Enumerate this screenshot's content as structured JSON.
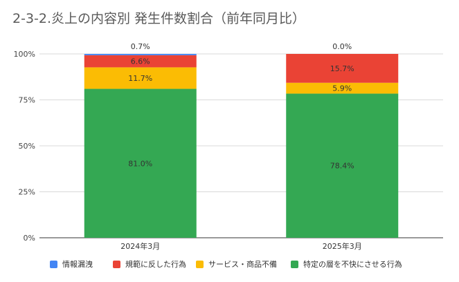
{
  "chart_data": {
    "type": "bar",
    "stacked": true,
    "normalized": true,
    "title": "2-3-2.炎上の内容別 発生件数割合（前年同月比）",
    "xlabel": "",
    "ylabel": "",
    "categories": [
      "2024年3月",
      "2025年3月"
    ],
    "ylim": [
      0,
      100
    ],
    "yticks": [
      "0%",
      "25%",
      "50%",
      "75%",
      "100%"
    ],
    "grid": true,
    "legend_position": "bottom",
    "series": [
      {
        "name": "特定の層を不快にさせる行為",
        "color": "#34a853",
        "values": [
          81.0,
          78.4
        ],
        "labels": [
          "81.0%",
          "78.4%"
        ]
      },
      {
        "name": "サービス・商品不備",
        "color": "#fbbc04",
        "values": [
          11.7,
          5.9
        ],
        "labels": [
          "11.7%",
          "5.9%"
        ]
      },
      {
        "name": "規範に反した行為",
        "color": "#ea4335",
        "values": [
          6.6,
          15.7
        ],
        "labels": [
          "6.6%",
          "15.7%"
        ]
      },
      {
        "name": "情報漏洩",
        "color": "#4285f4",
        "values": [
          0.7,
          0.0
        ],
        "labels": [
          "0.7%",
          "0.0%"
        ]
      }
    ],
    "legend_order": [
      "情報漏洩",
      "規範に反した行為",
      "サービス・商品不備",
      "特定の層を不快にさせる行為"
    ]
  }
}
